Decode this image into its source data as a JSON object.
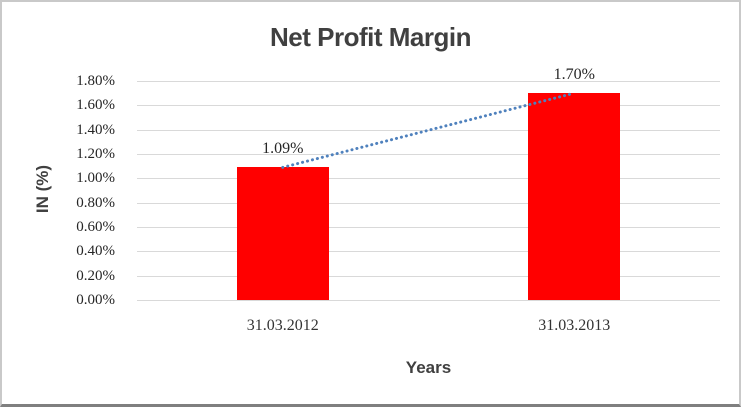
{
  "chart_data": {
    "type": "bar",
    "title": "Net Profit Margin",
    "xlabel": "Years",
    "ylabel": "IN (%)",
    "categories": [
      "31.03.2012",
      "31.03.2013"
    ],
    "values": [
      1.09,
      1.7
    ],
    "data_labels": [
      "1.09%",
      "1.70%"
    ],
    "y_ticks": [
      "1.80%",
      "1.60%",
      "1.40%",
      "1.20%",
      "1.00%",
      "0.80%",
      "0.60%",
      "0.40%",
      "0.20%",
      "0.00%"
    ],
    "ylim": [
      0,
      1.8
    ],
    "grid": true,
    "legend": "none",
    "bar_color": "#ff0000",
    "gridline_color": "#d9d9d9",
    "trendline": {
      "style": "dotted",
      "color": "#4f81bd",
      "connects": [
        1.09,
        1.7
      ]
    }
  }
}
